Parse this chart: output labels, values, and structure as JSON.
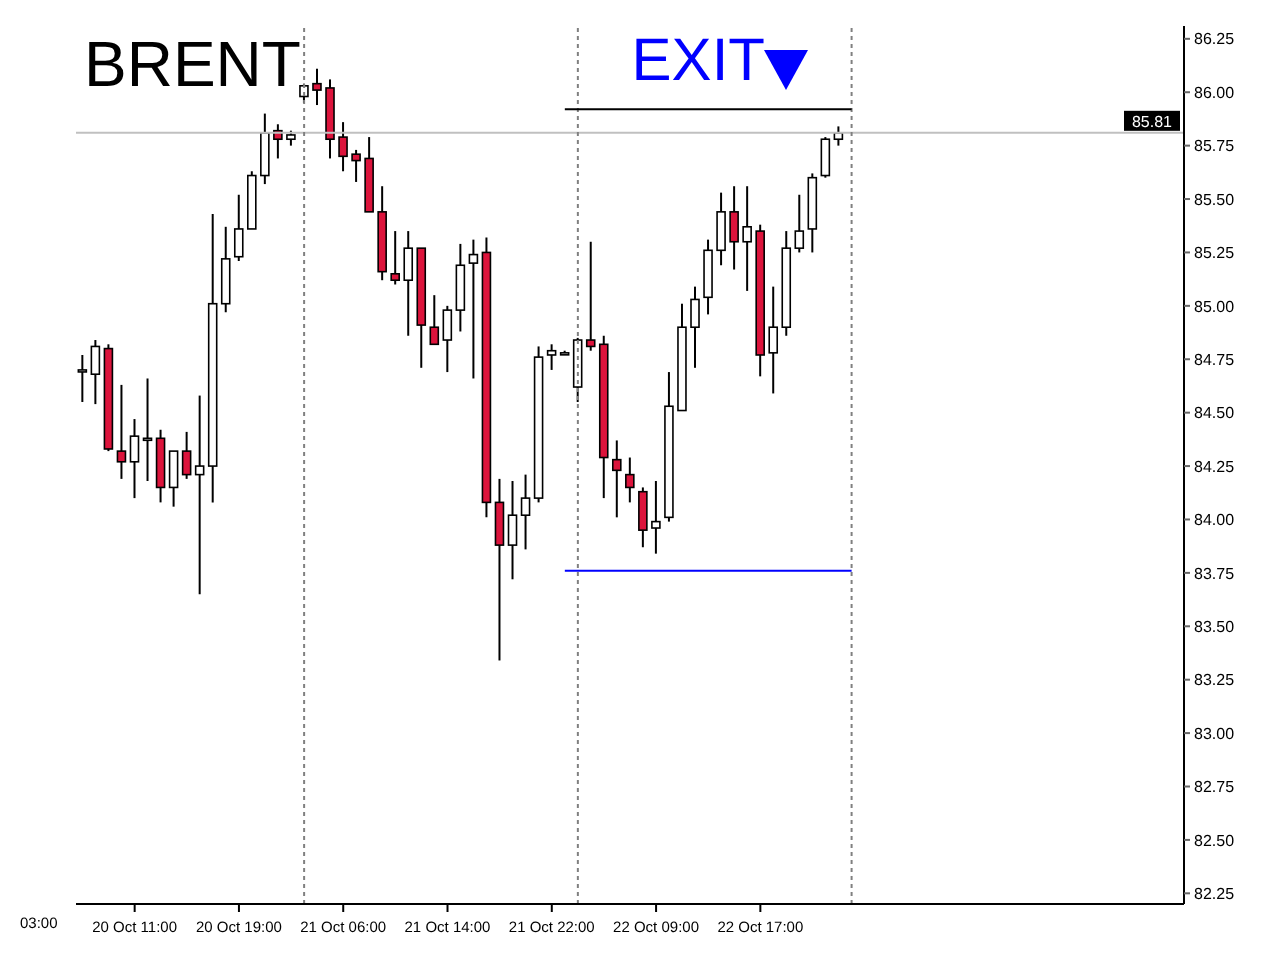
{
  "chart_data": {
    "type": "candlestick",
    "title": "BRENT",
    "colors": [
      "#ffffff",
      "#ffffff",
      "#dc143c",
      "#dc143c",
      "#ffffff",
      "#ffffff",
      "#dc143c",
      "#ffffff",
      "#dc143c",
      "#ffffff",
      "#ffffff",
      "#ffffff",
      "#ffffff",
      "#ffffff",
      "#ffffff",
      "#dc143c",
      "#ffffff",
      "#ffffff",
      "#dc143c",
      "#dc143c",
      "#dc143c",
      "#dc143c",
      "#dc143c",
      "#dc143c",
      "#dc143c",
      "#ffffff",
      "#dc143c",
      "#dc143c",
      "#ffffff",
      "#ffffff",
      "#ffffff",
      "#dc143c",
      "#dc143c",
      "#ffffff",
      "#ffffff",
      "#ffffff",
      "#ffffff",
      "#ffffff",
      "#ffffff",
      "#dc143c",
      "#dc143c",
      "#dc143c",
      "#dc143c",
      "#dc143c",
      "#ffffff",
      "#ffffff",
      "#ffffff",
      "#ffffff",
      "#ffffff",
      "#ffffff",
      "#dc143c",
      "#ffffff",
      "#dc143c",
      "#ffffff",
      "#ffffff",
      "#ffffff",
      "#ffffff",
      "#ffffff",
      "#ffffff",
      null,
      null,
      null,
      null,
      null,
      null,
      null,
      null,
      null,
      null,
      null,
      null,
      null,
      null,
      null,
      null,
      null,
      null,
      null,
      null,
      null,
      null,
      null,
      null,
      null,
      null
    ],
    "categories": [
      null,
      null,
      null,
      null,
      "20 Oct 11:00",
      null,
      null,
      null,
      null,
      null,
      null,
      null,
      "20 Oct 19:00",
      null,
      null,
      null,
      null,
      null,
      null,
      null,
      "21 Oct 06:00",
      null,
      null,
      null,
      null,
      null,
      null,
      null,
      "21 Oct 14:00",
      null,
      null,
      null,
      null,
      null,
      null,
      null,
      "21 Oct 22:00",
      null,
      null,
      null,
      null,
      null,
      null,
      null,
      "22 Oct 09:00",
      null,
      null,
      null,
      null,
      null,
      null,
      null,
      "22 Oct 17:00",
      null,
      null,
      null,
      null,
      null,
      null,
      null,
      null,
      null,
      null,
      null,
      null,
      null,
      null,
      null,
      null,
      null,
      null,
      null,
      null,
      null,
      null,
      null,
      null,
      null,
      null,
      null,
      null,
      null,
      null,
      null,
      null
    ],
    "ohlc": [
      [
        84.7,
        84.77,
        84.55,
        84.7
      ],
      [
        84.68,
        84.84,
        84.54,
        84.81
      ],
      [
        84.8,
        84.82,
        84.32,
        84.33
      ],
      [
        84.32,
        84.63,
        84.19,
        84.27
      ],
      [
        84.27,
        84.47,
        84.1,
        84.39
      ],
      [
        84.38,
        84.66,
        84.18,
        84.38
      ],
      [
        84.38,
        84.42,
        84.08,
        84.15
      ],
      [
        84.15,
        84.32,
        84.06,
        84.32
      ],
      [
        84.32,
        84.41,
        84.19,
        84.21
      ],
      [
        84.21,
        84.58,
        83.65,
        84.25
      ],
      [
        84.25,
        85.43,
        84.08,
        85.01
      ],
      [
        85.01,
        85.37,
        84.97,
        85.22
      ],
      [
        85.23,
        85.52,
        85.21,
        85.36
      ],
      [
        85.36,
        85.63,
        85.36,
        85.61
      ],
      [
        85.61,
        85.9,
        85.57,
        85.81
      ],
      [
        85.82,
        85.85,
        85.69,
        85.78
      ],
      [
        85.78,
        85.82,
        85.75,
        85.8
      ],
      [
        85.98,
        86.04,
        85.95,
        86.03
      ],
      [
        86.04,
        86.11,
        85.94,
        86.01
      ],
      [
        86.02,
        86.06,
        85.69,
        85.78
      ],
      [
        85.79,
        85.86,
        85.63,
        85.7
      ],
      [
        85.71,
        85.73,
        85.58,
        85.68
      ],
      [
        85.69,
        85.79,
        85.44,
        85.44
      ],
      [
        85.44,
        85.56,
        85.12,
        85.16
      ],
      [
        85.15,
        85.35,
        85.1,
        85.12
      ],
      [
        85.12,
        85.35,
        84.86,
        85.27
      ],
      [
        85.27,
        85.27,
        84.71,
        84.91
      ],
      [
        84.9,
        85.05,
        84.82,
        84.82
      ],
      [
        84.84,
        85.0,
        84.69,
        84.98
      ],
      [
        84.98,
        85.29,
        84.88,
        85.19
      ],
      [
        85.2,
        85.31,
        84.66,
        85.24
      ],
      [
        85.25,
        85.32,
        84.01,
        84.08
      ],
      [
        84.08,
        84.19,
        83.34,
        83.88
      ],
      [
        83.88,
        84.18,
        83.72,
        84.02
      ],
      [
        84.02,
        84.21,
        83.86,
        84.1
      ],
      [
        84.1,
        84.81,
        84.08,
        84.76
      ],
      [
        84.77,
        84.82,
        84.7,
        84.79
      ],
      [
        84.78,
        84.79,
        84.77,
        84.78
      ],
      [
        84.62,
        84.85,
        84.55,
        84.84
      ],
      [
        84.84,
        85.3,
        84.79,
        84.81
      ],
      [
        84.82,
        84.86,
        84.1,
        84.29
      ],
      [
        84.28,
        84.37,
        84.01,
        84.23
      ],
      [
        84.21,
        84.29,
        84.08,
        84.15
      ],
      [
        84.13,
        84.15,
        83.87,
        83.95
      ],
      [
        83.96,
        84.18,
        83.84,
        83.99
      ],
      [
        84.01,
        84.69,
        83.99,
        84.53
      ],
      [
        84.51,
        85.01,
        84.51,
        84.9
      ],
      [
        84.9,
        85.09,
        84.71,
        85.03
      ],
      [
        85.04,
        85.31,
        84.96,
        85.26
      ],
      [
        85.26,
        85.53,
        85.19,
        85.44
      ],
      [
        85.44,
        85.56,
        85.17,
        85.3
      ],
      [
        85.3,
        85.56,
        85.07,
        85.37
      ],
      [
        85.35,
        85.38,
        84.67,
        84.77
      ],
      [
        84.78,
        85.09,
        84.59,
        84.9
      ],
      [
        84.9,
        85.35,
        84.86,
        85.27
      ],
      [
        85.27,
        85.52,
        85.25,
        85.35
      ],
      [
        85.36,
        85.62,
        85.25,
        85.6
      ],
      [
        85.61,
        85.79,
        85.6,
        85.78
      ],
      [
        85.78,
        85.84,
        85.75,
        85.81
      ],
      null,
      null,
      null,
      null,
      null,
      null,
      null,
      null,
      null,
      null,
      null,
      null,
      null,
      null,
      null,
      null,
      null,
      null,
      null,
      null,
      null,
      null,
      null,
      null,
      null,
      null
    ],
    "series": [
      {
        "type": "line",
        "color": "#000000",
        "values": [
          null,
          null,
          null,
          null,
          null,
          null,
          null,
          null,
          null,
          null,
          null,
          null,
          null,
          null,
          null,
          null,
          null,
          null,
          null,
          null,
          null,
          null,
          null,
          null,
          null,
          null,
          null,
          null,
          null,
          null,
          null,
          null,
          null,
          null,
          null,
          null,
          null,
          85.92,
          85.92,
          85.92,
          85.92,
          85.92,
          85.92,
          85.92,
          85.92,
          85.92,
          85.92,
          85.92,
          85.92,
          85.92,
          85.92,
          85.92,
          85.92,
          85.92,
          85.92,
          85.92,
          85.92,
          85.92,
          85.92,
          85.92,
          null,
          null,
          null,
          null,
          null,
          null,
          null,
          null,
          null,
          null,
          null,
          null,
          null,
          null,
          null,
          null,
          null,
          null,
          null,
          null,
          null,
          null,
          null,
          null,
          null
        ]
      },
      {
        "type": "line",
        "color": "#0000ff",
        "values": [
          null,
          null,
          null,
          null,
          null,
          null,
          null,
          null,
          null,
          null,
          null,
          null,
          null,
          null,
          null,
          null,
          null,
          null,
          null,
          null,
          null,
          null,
          null,
          null,
          null,
          null,
          null,
          null,
          null,
          null,
          null,
          null,
          null,
          null,
          null,
          null,
          null,
          83.76,
          83.76,
          83.76,
          83.76,
          83.76,
          83.76,
          83.76,
          83.76,
          83.76,
          83.76,
          83.76,
          83.76,
          83.76,
          83.76,
          83.76,
          83.76,
          83.76,
          83.76,
          83.76,
          83.76,
          83.76,
          83.76,
          83.76,
          null,
          null,
          null,
          null,
          null,
          null,
          null,
          null,
          null,
          null,
          null,
          null,
          null,
          null,
          null,
          null,
          null,
          null,
          null,
          null,
          null,
          null,
          null,
          null,
          null
        ]
      }
    ],
    "ref_lines": [
      {
        "axis": "y",
        "value": 85.81,
        "label": "85.81",
        "color": "#c0c0c0",
        "line_style": "solid"
      }
    ],
    "annotations": [
      "03:00",
      "EXIT"
    ],
    "ylim": [
      82.2,
      86.31
    ],
    "yticks": [
      82.25,
      {
        "value": 82.5,
        "label": "82.50"
      },
      82.75,
      {
        "value": 83,
        "label": "83.00"
      },
      83.25,
      {
        "value": 83.5,
        "label": "83.50"
      },
      83.75,
      {
        "value": 84,
        "label": "84.00"
      },
      84.25,
      {
        "value": 84.5,
        "label": "84.50"
      },
      84.75,
      {
        "value": 85,
        "label": "85.00"
      },
      85.25,
      {
        "value": 85.5,
        "label": "85.50"
      },
      85.75,
      {
        "value": 86,
        "label": "86.00"
      },
      86.25
    ]
  }
}
